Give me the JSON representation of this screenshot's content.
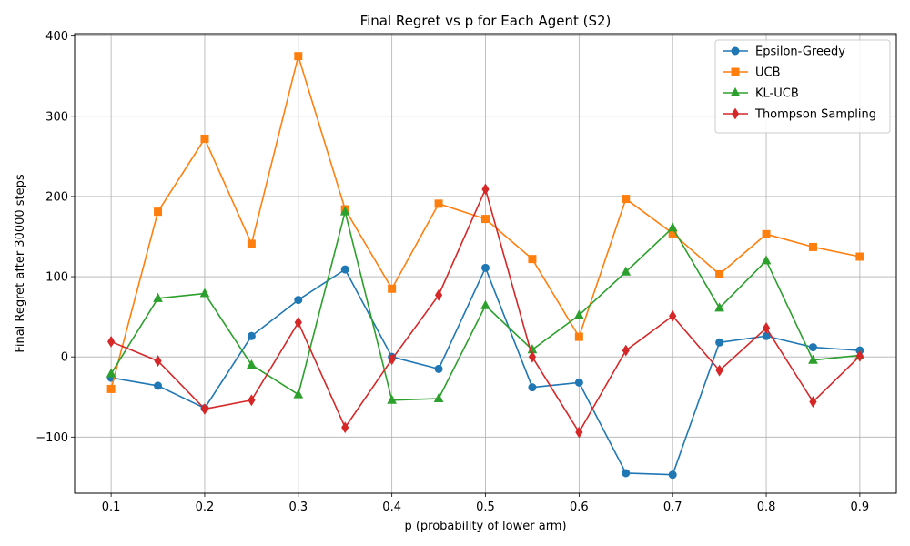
{
  "chart_data": {
    "type": "line",
    "title": "Final Regret vs p for Each Agent (S2)",
    "xlabel": "p (probability of lower arm)",
    "ylabel": "Final Regret after 30000 steps",
    "x": [
      0.1,
      0.15,
      0.2,
      0.25,
      0.3,
      0.35,
      0.4,
      0.45,
      0.5,
      0.55,
      0.6,
      0.65,
      0.7,
      0.75,
      0.8,
      0.85,
      0.9
    ],
    "xticks": [
      0.1,
      0.2,
      0.3,
      0.4,
      0.5,
      0.6,
      0.7,
      0.8,
      0.9
    ],
    "xtick_labels": [
      "0.1",
      "0.2",
      "0.3",
      "0.4",
      "0.5",
      "0.6",
      "0.7",
      "0.8",
      "0.9"
    ],
    "yticks": [
      -100,
      0,
      100,
      200,
      300,
      400
    ],
    "ytick_labels": [
      "−100",
      "0",
      "100",
      "200",
      "300",
      "400"
    ],
    "xlim": [
      0.061,
      0.939
    ],
    "ylim": [
      -170,
      403
    ],
    "grid": true,
    "legend_position": "top-right",
    "series": [
      {
        "name": "Epsilon-Greedy",
        "color": "#1f77b4",
        "marker": "circle",
        "values": [
          -26,
          -36,
          -64,
          26,
          71,
          109,
          0,
          -15,
          111,
          -38,
          -32,
          -145,
          -147,
          18,
          26,
          12,
          8
        ]
      },
      {
        "name": "UCB",
        "color": "#ff7f0e",
        "marker": "square",
        "values": [
          -40,
          181,
          272,
          141,
          375,
          184,
          85,
          191,
          172,
          122,
          25,
          197,
          154,
          103,
          153,
          137,
          125
        ]
      },
      {
        "name": "KL-UCB",
        "color": "#2ca02c",
        "marker": "triangle",
        "values": [
          -21,
          73,
          79,
          -10,
          -47,
          181,
          -54,
          -52,
          64,
          9,
          52,
          106,
          161,
          61,
          120,
          -4,
          2
        ]
      },
      {
        "name": "Thompson Sampling",
        "color": "#d62728",
        "marker": "diamond",
        "values": [
          19,
          -5,
          -65,
          -54,
          43,
          -88,
          -3,
          77,
          209,
          0,
          -94,
          8,
          51,
          -17,
          36,
          -56,
          1
        ]
      }
    ]
  }
}
